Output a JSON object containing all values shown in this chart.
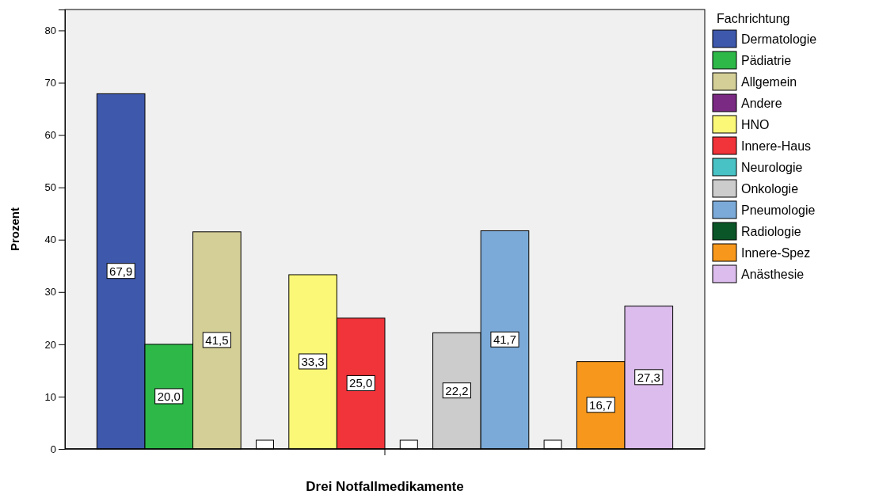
{
  "chart_data": {
    "type": "bar",
    "xlabel": "Drei Notfallmedikamente",
    "ylabel": "Prozent",
    "legend_title": "Fachrichtung",
    "legend": "right",
    "grid": false,
    "categories": [
      null
    ],
    "ylim": [
      0,
      84
    ],
    "yticks": [
      0,
      10,
      20,
      30,
      40,
      50,
      60,
      70,
      80
    ],
    "series": [
      {
        "name": "Dermatologie",
        "color": "#3e58ac",
        "values": [
          67.9
        ],
        "value_labels": [
          "67,9"
        ]
      },
      {
        "name": "Pädiatrie",
        "color": "#2eb848",
        "values": [
          20.0
        ],
        "value_labels": [
          "20,0"
        ]
      },
      {
        "name": "Allgemein",
        "color": "#d4cf97",
        "values": [
          41.5
        ],
        "value_labels": [
          "41,5"
        ]
      },
      {
        "name": "Andere",
        "color": "#7b2a84",
        "values": [
          null
        ],
        "value_labels": [
          null
        ]
      },
      {
        "name": "HNO",
        "color": "#fbf877",
        "values": [
          33.3
        ],
        "value_labels": [
          "33,3"
        ]
      },
      {
        "name": "Innere-Haus",
        "color": "#f0343a",
        "values": [
          25.0
        ],
        "value_labels": [
          "25,0"
        ]
      },
      {
        "name": "Neurologie",
        "color": "#48c2c5",
        "values": [
          null
        ],
        "value_labels": [
          null
        ]
      },
      {
        "name": "Onkologie",
        "color": "#cccccc",
        "values": [
          22.2
        ],
        "value_labels": [
          "22,2"
        ]
      },
      {
        "name": "Pneumologie",
        "color": "#7baad8",
        "values": [
          41.7
        ],
        "value_labels": [
          "41,7"
        ]
      },
      {
        "name": "Radiologie",
        "color": "#0b5628",
        "values": [
          null
        ],
        "value_labels": [
          null
        ]
      },
      {
        "name": "Innere-Spez",
        "color": "#f7981d",
        "values": [
          16.7
        ],
        "value_labels": [
          "16,7"
        ]
      },
      {
        "name": "Anästhesie",
        "color": "#dcbcec",
        "values": [
          27.3
        ],
        "value_labels": [
          "27,3"
        ]
      }
    ]
  }
}
